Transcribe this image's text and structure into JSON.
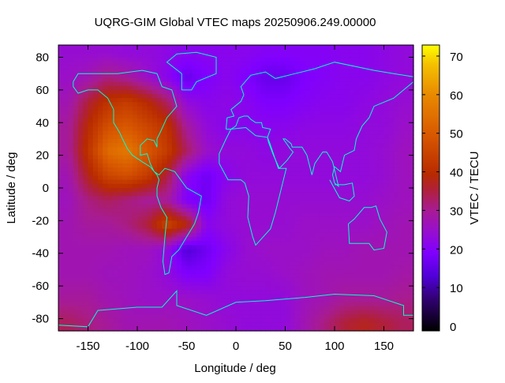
{
  "chart_data": {
    "type": "heatmap",
    "title": "UQRG-GIM Global VTEC maps 20250906.249.00000",
    "xlabel": "Longitude / deg",
    "ylabel": "Latitude / deg",
    "colorbar_label": "VTEC / TECU",
    "xlim": [
      -180,
      180
    ],
    "ylim": [
      -87.5,
      87.5
    ],
    "clim": [
      0,
      73
    ],
    "xticks": [
      -150,
      -100,
      -50,
      0,
      50,
      100,
      150
    ],
    "yticks": [
      80,
      60,
      40,
      20,
      0,
      -20,
      -40,
      -60,
      -80
    ],
    "cticks": [
      0,
      10,
      20,
      30,
      40,
      50,
      60,
      70
    ],
    "colormap": [
      {
        "v": 0,
        "c": "#000000"
      },
      {
        "v": 8,
        "c": "#300070"
      },
      {
        "v": 14,
        "c": "#5000d8"
      },
      {
        "v": 20,
        "c": "#8000ff"
      },
      {
        "v": 26,
        "c": "#9a10c8"
      },
      {
        "v": 31,
        "c": "#a81c90"
      },
      {
        "v": 36,
        "c": "#b0203a"
      },
      {
        "v": 40,
        "c": "#b82a00"
      },
      {
        "v": 50,
        "c": "#d85800"
      },
      {
        "v": 60,
        "c": "#e88800"
      },
      {
        "v": 68,
        "c": "#f4c000"
      },
      {
        "v": 73,
        "c": "#ffff00"
      }
    ],
    "coastline_color": "#00ffcc",
    "grid_lon": [
      -170,
      -150,
      -130,
      -110,
      -90,
      -70,
      -50,
      -30,
      -10,
      10,
      30,
      50,
      70,
      90,
      110,
      130,
      150,
      170
    ],
    "grid_lat": [
      82.5,
      67.5,
      52.5,
      37.5,
      22.5,
      7.5,
      -7.5,
      -22.5,
      -37.5,
      -52.5,
      -67.5,
      -82.5
    ],
    "values": [
      [
        25,
        25,
        25,
        24,
        24,
        23,
        22,
        22,
        22,
        22,
        21,
        21,
        21,
        21,
        22,
        22,
        23,
        24
      ],
      [
        26,
        28,
        32,
        30,
        26,
        22,
        17,
        20,
        22,
        20,
        17,
        17,
        20,
        21,
        22,
        22,
        23,
        24
      ],
      [
        28,
        36,
        42,
        44,
        40,
        34,
        24,
        22,
        23,
        22,
        20,
        20,
        21,
        22,
        22,
        23,
        24,
        25
      ],
      [
        30,
        40,
        48,
        50,
        46,
        42,
        30,
        24,
        22,
        22,
        22,
        22,
        23,
        23,
        23,
        24,
        24,
        26
      ],
      [
        30,
        42,
        54,
        57,
        50,
        44,
        34,
        26,
        24,
        24,
        23,
        24,
        24,
        24,
        24,
        24,
        25,
        27
      ],
      [
        28,
        38,
        46,
        48,
        44,
        36,
        22,
        18,
        22,
        24,
        24,
        24,
        24,
        24,
        24,
        24,
        25,
        27
      ],
      [
        27,
        32,
        34,
        32,
        30,
        30,
        20,
        18,
        24,
        25,
        25,
        25,
        25,
        25,
        25,
        25,
        26,
        27
      ],
      [
        28,
        30,
        30,
        32,
        36,
        46,
        40,
        22,
        24,
        25,
        25,
        25,
        26,
        26,
        26,
        26,
        27,
        28
      ],
      [
        28,
        28,
        28,
        27,
        27,
        24,
        14,
        18,
        22,
        25,
        26,
        26,
        26,
        27,
        27,
        28,
        28,
        28
      ],
      [
        28,
        28,
        27,
        27,
        26,
        24,
        20,
        20,
        24,
        25,
        25,
        26,
        27,
        28,
        28,
        28,
        28,
        29
      ],
      [
        30,
        30,
        28,
        27,
        26,
        26,
        26,
        25,
        24,
        24,
        24,
        24,
        27,
        28,
        30,
        30,
        30,
        31
      ],
      [
        34,
        32,
        30,
        28,
        28,
        28,
        27,
        26,
        25,
        24,
        24,
        24,
        28,
        32,
        36,
        38,
        36,
        34
      ]
    ]
  }
}
